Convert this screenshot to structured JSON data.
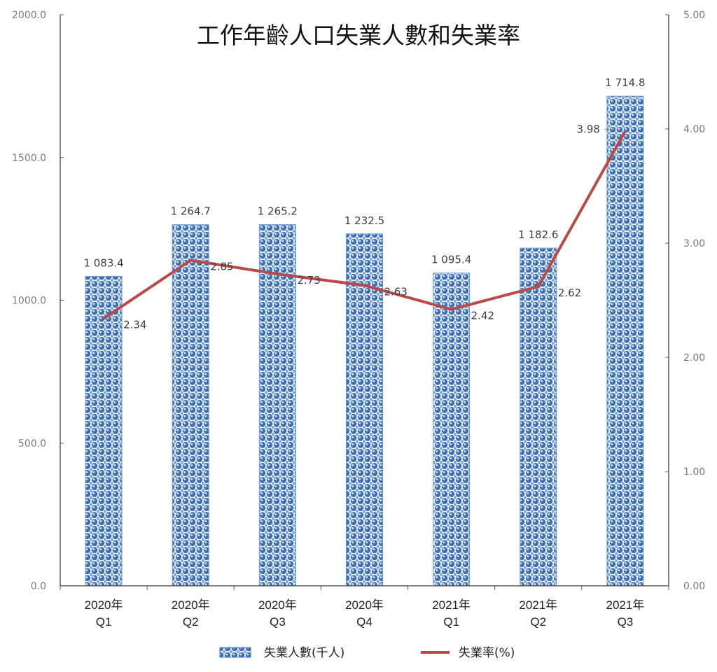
{
  "chart": {
    "title": "工作年齡人口失業人數和失業率",
    "left_axis_ticks": [
      "0.0",
      "500.0",
      "1000.0",
      "1500.0",
      "2000.0"
    ],
    "right_axis_ticks": [
      "0.00",
      "1.00",
      "2.00",
      "3.00",
      "4.00",
      "5.00"
    ],
    "legend": {
      "bar_label": "失業人數(千人)",
      "line_label": "失業率(%)"
    },
    "colors": {
      "bar_fill": "#4a7fc1",
      "bar_dot": "#2e5fa3",
      "bar_highlight": "#ffffff",
      "line": "#b94a4a",
      "axis": "#595959"
    }
  },
  "chart_data": {
    "type": "bar",
    "title": "工作年齡人口失業人數和失業率",
    "xlabel": "",
    "ylabel": "",
    "categories": [
      "2020年 Q1",
      "2020年 Q2",
      "2020年 Q3",
      "2020年 Q4",
      "2021年 Q1",
      "2021年 Q2",
      "2021年 Q3"
    ],
    "category_lines": [
      [
        "2020年",
        "Q1"
      ],
      [
        "2020年",
        "Q2"
      ],
      [
        "2020年",
        "Q3"
      ],
      [
        "2020年",
        "Q4"
      ],
      [
        "2021年",
        "Q1"
      ],
      [
        "2021年",
        "Q2"
      ],
      [
        "2021年",
        "Q3"
      ]
    ],
    "series": [
      {
        "name": "失業人數(千人)",
        "type": "bar",
        "axis": "left",
        "values": [
          1083.4,
          1264.7,
          1265.2,
          1232.5,
          1095.4,
          1182.6,
          1714.8
        ],
        "labels": [
          "1 083.4",
          "1 264.7",
          "1 265.2",
          "1 232.5",
          "1 095.4",
          "1 182.6",
          "1 714.8"
        ]
      },
      {
        "name": "失業率(%)",
        "type": "line",
        "axis": "right",
        "values": [
          2.34,
          2.85,
          2.73,
          2.63,
          2.42,
          2.62,
          3.98
        ],
        "labels": [
          "2.34",
          "2.85",
          "2.73",
          "2.63",
          "2.42",
          "2.62",
          "3.98"
        ]
      }
    ],
    "ylim": [
      0,
      2000
    ],
    "y2lim": [
      0,
      5
    ],
    "grid": false,
    "legend_position": "bottom"
  }
}
